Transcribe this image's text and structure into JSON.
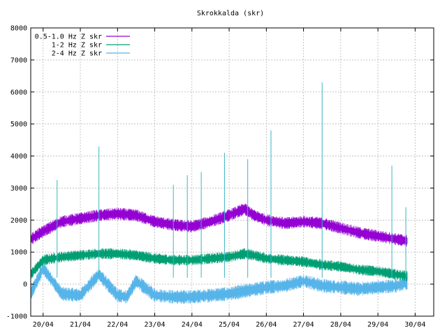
{
  "chart_data": {
    "type": "line",
    "title": "Skrokkalda (skr)",
    "xlabel": "",
    "ylabel": "",
    "ylim": [
      -1000,
      8000
    ],
    "yticks": [
      -1000,
      0,
      1000,
      2000,
      3000,
      4000,
      5000,
      6000,
      7000,
      8000
    ],
    "xlim": [
      "2019-04-19T16:00",
      "2019-04-30T12:00"
    ],
    "xtick_labels": [
      "20/04",
      "21/04",
      "22/04",
      "23/04",
      "24/04",
      "25/04",
      "26/04",
      "27/04",
      "28/04",
      "29/04",
      "30/04"
    ],
    "x_dates": [
      "2019-04-20",
      "2019-04-21",
      "2019-04-22",
      "2019-04-23",
      "2019-04-24",
      "2019-04-25",
      "2019-04-26",
      "2019-04-27",
      "2019-04-28",
      "2019-04-29",
      "2019-04-30"
    ],
    "grid": true,
    "legend_position": "top-left",
    "series": [
      {
        "name": "0.5-1.0 Hz Z skr",
        "color": "#9400d3",
        "x": [
          "2019-04-19T16:00",
          "2019-04-20T00:00",
          "2019-04-20T12:00",
          "2019-04-21T00:00",
          "2019-04-21T12:00",
          "2019-04-22T00:00",
          "2019-04-22T12:00",
          "2019-04-23T00:00",
          "2019-04-23T12:00",
          "2019-04-24T00:00",
          "2019-04-24T12:00",
          "2019-04-25T00:00",
          "2019-04-25T10:00",
          "2019-04-25T16:00",
          "2019-04-26T00:00",
          "2019-04-26T12:00",
          "2019-04-27T00:00",
          "2019-04-27T12:00",
          "2019-04-28T00:00",
          "2019-04-28T12:00",
          "2019-04-29T00:00",
          "2019-04-29T12:00",
          "2019-04-29T19:00"
        ],
        "values": [
          1400,
          1650,
          1950,
          2050,
          2150,
          2200,
          2150,
          1950,
          1850,
          1800,
          1950,
          2150,
          2350,
          2150,
          2000,
          1900,
          1950,
          1900,
          1750,
          1600,
          1500,
          1400,
          1350
        ]
      },
      {
        "name": "1-2 Hz Z skr",
        "color": "#009e73",
        "x": [
          "2019-04-19T16:00",
          "2019-04-20T00:00",
          "2019-04-20T12:00",
          "2019-04-21T00:00",
          "2019-04-21T12:00",
          "2019-04-22T00:00",
          "2019-04-22T12:00",
          "2019-04-23T00:00",
          "2019-04-23T12:00",
          "2019-04-24T00:00",
          "2019-04-24T12:00",
          "2019-04-25T00:00",
          "2019-04-25T10:00",
          "2019-04-25T16:00",
          "2019-04-26T00:00",
          "2019-04-26T12:00",
          "2019-04-27T00:00",
          "2019-04-27T12:00",
          "2019-04-28T00:00",
          "2019-04-28T12:00",
          "2019-04-29T00:00",
          "2019-04-29T12:00",
          "2019-04-29T19:00"
        ],
        "values": [
          300,
          750,
          850,
          900,
          950,
          950,
          900,
          800,
          750,
          750,
          800,
          850,
          950,
          900,
          800,
          750,
          700,
          600,
          550,
          450,
          400,
          300,
          250
        ]
      },
      {
        "name": "2-4 Hz Z skr",
        "color": "#56b4e9",
        "x": [
          "2019-04-19T16:00",
          "2019-04-20T00:00",
          "2019-04-20T12:00",
          "2019-04-21T00:00",
          "2019-04-21T12:00",
          "2019-04-22T00:00",
          "2019-04-22T06:00",
          "2019-04-22T12:00",
          "2019-04-23T00:00",
          "2019-04-23T12:00",
          "2019-04-24T00:00",
          "2019-04-24T12:00",
          "2019-04-25T00:00",
          "2019-04-25T12:00",
          "2019-04-26T00:00",
          "2019-04-26T12:00",
          "2019-04-27T00:00",
          "2019-04-27T12:00",
          "2019-04-28T00:00",
          "2019-04-28T12:00",
          "2019-04-29T00:00",
          "2019-04-29T12:00",
          "2019-04-29T19:00"
        ],
        "values": [
          -300,
          500,
          -300,
          -350,
          300,
          -350,
          -400,
          100,
          -350,
          -400,
          -400,
          -350,
          -300,
          -200,
          -100,
          -50,
          100,
          -50,
          -100,
          -150,
          -100,
          -50,
          50
        ]
      }
    ],
    "spikes": [
      {
        "x": "2019-04-20T09:00",
        "y": 3250
      },
      {
        "x": "2019-04-21T12:00",
        "y": 4300
      },
      {
        "x": "2019-04-23T12:00",
        "y": 3100
      },
      {
        "x": "2019-04-23T21:00",
        "y": 3400
      },
      {
        "x": "2019-04-24T06:00",
        "y": 3500
      },
      {
        "x": "2019-04-24T21:00",
        "y": 4100
      },
      {
        "x": "2019-04-25T12:00",
        "y": 3900
      },
      {
        "x": "2019-04-26T03:00",
        "y": 4800
      },
      {
        "x": "2019-04-27T12:00",
        "y": 6300
      },
      {
        "x": "2019-04-29T09:00",
        "y": 3700
      },
      {
        "x": "2019-04-29T18:00",
        "y": 2400
      }
    ]
  }
}
